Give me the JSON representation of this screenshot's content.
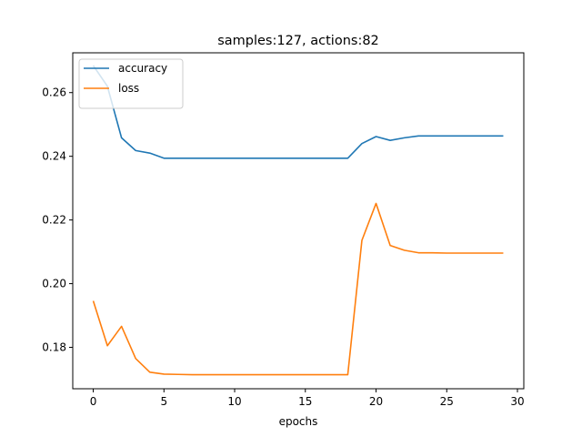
{
  "chart_data": {
    "type": "line",
    "title": "samples:127, actions:82",
    "xlabel": "epochs",
    "ylabel": "",
    "xlim": [
      -1.45,
      30.45
    ],
    "ylim": [
      0.167,
      0.2725
    ],
    "x_ticks": [
      0,
      5,
      10,
      15,
      20,
      25,
      30
    ],
    "y_ticks": [
      0.18,
      0.2,
      0.22,
      0.24,
      0.26
    ],
    "grid": false,
    "legend_position": "upper-left",
    "x": [
      0,
      1,
      2,
      3,
      4,
      5,
      6,
      7,
      8,
      9,
      10,
      11,
      12,
      13,
      14,
      15,
      16,
      17,
      18,
      19,
      20,
      21,
      22,
      23,
      24,
      25,
      26,
      27,
      28,
      29
    ],
    "series": [
      {
        "name": "accuracy",
        "color": "#1f77b4",
        "values": [
          0.2685,
          0.262,
          0.2458,
          0.2418,
          0.241,
          0.2394,
          0.2394,
          0.2394,
          0.2394,
          0.2394,
          0.2394,
          0.2394,
          0.2394,
          0.2394,
          0.2394,
          0.2394,
          0.2394,
          0.2394,
          0.2394,
          0.244,
          0.2462,
          0.245,
          0.2458,
          0.2464,
          0.2464,
          0.2464,
          0.2464,
          0.2464,
          0.2464,
          0.2464
        ]
      },
      {
        "name": "loss",
        "color": "#ff7f0e",
        "values": [
          0.1946,
          0.1805,
          0.1866,
          0.1765,
          0.1722,
          0.1716,
          0.1715,
          0.1714,
          0.1714,
          0.1714,
          0.1714,
          0.1714,
          0.1714,
          0.1714,
          0.1714,
          0.1714,
          0.1714,
          0.1714,
          0.1714,
          0.2136,
          0.2252,
          0.212,
          0.2105,
          0.2097,
          0.2097,
          0.2096,
          0.2096,
          0.2096,
          0.2096,
          0.2096
        ]
      }
    ]
  }
}
